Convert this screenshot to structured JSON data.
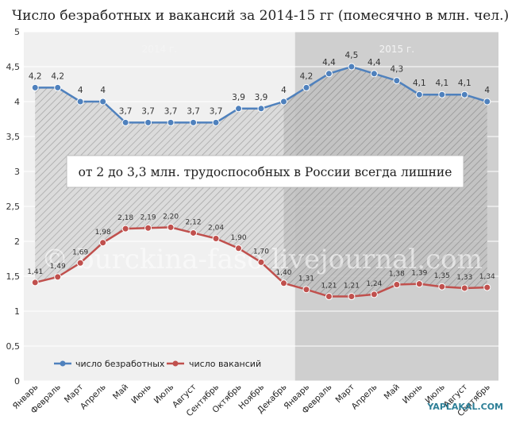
{
  "chart_data": {
    "type": "line",
    "title": "Число безработных и вакансий за 2014-15 гг (помесячно в млн. чел.)",
    "categories": [
      "Январь",
      "Февраль",
      "Март",
      "Апрель",
      "Май",
      "Июнь",
      "Июль",
      "Август",
      "Сентябрь",
      "Октябрь",
      "Ноябрь",
      "Декабрь",
      "Январь",
      "Февраль",
      "Март",
      "Апрель",
      "Май",
      "Июнь",
      "Июль",
      "Август",
      "Сентябрь"
    ],
    "ylim": [
      0,
      5
    ],
    "yticks": [
      "0",
      "0,5",
      "1",
      "1,5",
      "2",
      "2,5",
      "3",
      "3,5",
      "4",
      "4,5",
      "5"
    ],
    "grid": true,
    "legend_position": "bottom-left",
    "periods": [
      {
        "label": "2014 г.",
        "from": 0,
        "to": 11
      },
      {
        "label": "2015 г.",
        "from": 12,
        "to": 20
      }
    ],
    "series": [
      {
        "name": "число безработных",
        "color": "#4f81bd",
        "values": [
          4.2,
          4.2,
          4,
          4,
          3.7,
          3.7,
          3.7,
          3.7,
          3.7,
          3.9,
          3.9,
          4,
          4.2,
          4.4,
          4.5,
          4.4,
          4.3,
          4.1,
          4.1,
          4.1,
          4
        ],
        "labels": [
          "4,2",
          "4,2",
          "4",
          "4",
          "3,7",
          "3,7",
          "3,7",
          "3,7",
          "3,7",
          "3,9",
          "3,9",
          "4",
          "4,2",
          "4,4",
          "4,5",
          "4,4",
          "4,3",
          "4,1",
          "4,1",
          "4,1",
          "4"
        ]
      },
      {
        "name": "число вакансий",
        "color": "#c0504d",
        "values": [
          1.41,
          1.49,
          1.69,
          1.98,
          2.18,
          2.19,
          2.2,
          2.12,
          2.04,
          1.9,
          1.7,
          1.4,
          1.31,
          1.21,
          1.21,
          1.24,
          1.38,
          1.39,
          1.35,
          1.33,
          1.34
        ],
        "labels": [
          "1,41",
          "1,49",
          "1,69",
          "1,98",
          "2,18",
          "2,19",
          "2,20",
          "2,12",
          "2,04",
          "1,90",
          "1,70",
          "1,40",
          "1,31",
          "1,21",
          "1,21",
          "1,24",
          "1,38",
          "1,39",
          "1,35",
          "1,33",
          "1,34"
        ]
      }
    ],
    "annotation": "от 2 до 3,3 млн. трудоспособных в России всегда лишние",
    "watermark": "© burckina-faso.livejournal.com",
    "logo": "YAPLAKAL.COM"
  }
}
